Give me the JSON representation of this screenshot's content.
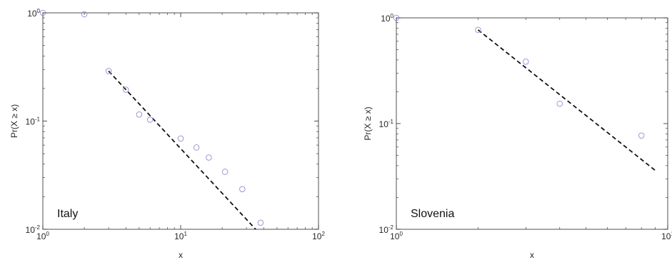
{
  "chart_data": [
    {
      "type": "scatter",
      "panel_label": "Italy",
      "xlabel": "x",
      "ylabel": "Pr(X ≥ x)",
      "xscale": "log",
      "yscale": "log",
      "xlim": [
        1,
        100
      ],
      "ylim": [
        0.01,
        1
      ],
      "grid": false,
      "x_ticks": [
        {
          "base": "10",
          "exp": "0"
        },
        {
          "base": "10",
          "exp": "1"
        },
        {
          "base": "10",
          "exp": "2"
        }
      ],
      "y_ticks": [
        {
          "base": "10",
          "exp": "0"
        },
        {
          "base": "10",
          "exp": "-1"
        },
        {
          "base": "10",
          "exp": "-2"
        }
      ],
      "points": {
        "x": [
          1,
          2,
          3,
          4,
          5,
          6,
          10,
          13,
          16,
          21,
          28,
          38
        ],
        "y": [
          1.0,
          0.97,
          0.29,
          0.195,
          0.115,
          0.103,
          0.069,
          0.057,
          0.046,
          0.034,
          0.0235,
          0.0115
        ]
      },
      "marker_color": "#9a98d4",
      "fit_line": {
        "style": "dashed",
        "color": "#111111",
        "x": [
          3,
          35
        ],
        "y": [
          0.29,
          0.01
        ]
      }
    },
    {
      "type": "scatter",
      "panel_label": "Slovenia",
      "xlabel": "x",
      "ylabel": "Pr(X ≥ x)",
      "xscale": "log",
      "yscale": "log",
      "xlim": [
        1,
        10
      ],
      "ylim": [
        0.01,
        1
      ],
      "grid": false,
      "x_ticks": [
        {
          "base": "10",
          "exp": "0"
        },
        {
          "base": "10",
          "exp": "1"
        }
      ],
      "y_ticks": [
        {
          "base": "10",
          "exp": "0"
        },
        {
          "base": "10",
          "exp": "-1"
        },
        {
          "base": "10",
          "exp": "-2"
        }
      ],
      "points": {
        "x": [
          1,
          2,
          3,
          4,
          8
        ],
        "y": [
          1.0,
          0.77,
          0.385,
          0.154,
          0.077
        ]
      },
      "marker_color": "#9a98d4",
      "fit_line": {
        "style": "dashed",
        "color": "#111111",
        "x": [
          2,
          9
        ],
        "y": [
          0.77,
          0.036
        ]
      }
    }
  ]
}
